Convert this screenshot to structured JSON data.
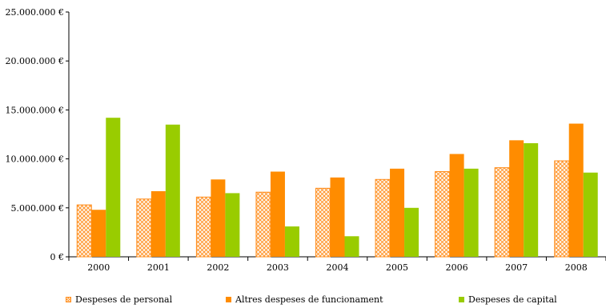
{
  "chart_data": {
    "type": "bar",
    "categories": [
      "2000",
      "2001",
      "2002",
      "2003",
      "2004",
      "2005",
      "2006",
      "2007",
      "2008"
    ],
    "series": [
      {
        "name": "Despeses de personal",
        "color": "#ff8c1a",
        "pattern": "crosshatch",
        "values": [
          5300000,
          5900000,
          6100000,
          6600000,
          7000000,
          7900000,
          8700000,
          9100000,
          9800000
        ]
      },
      {
        "name": "Altres despeses de funcionament",
        "color": "#ff8c00",
        "pattern": "solid",
        "values": [
          4800000,
          6700000,
          7900000,
          8700000,
          8100000,
          9000000,
          10500000,
          11900000,
          13600000
        ]
      },
      {
        "name": "Despeses de capital",
        "color": "#99cc00",
        "pattern": "solid",
        "values": [
          14200000,
          13500000,
          6500000,
          3100000,
          2100000,
          5000000,
          9000000,
          11600000,
          8600000
        ]
      }
    ],
    "y_ticks": [
      "0 €",
      "5.000.000 €",
      "10.000.000 €",
      "15.000.000 €",
      "20.000.000 €",
      "25.000.000 €"
    ],
    "ylim": [
      0,
      25000000
    ],
    "grid": false,
    "legend_position": "bottom"
  }
}
